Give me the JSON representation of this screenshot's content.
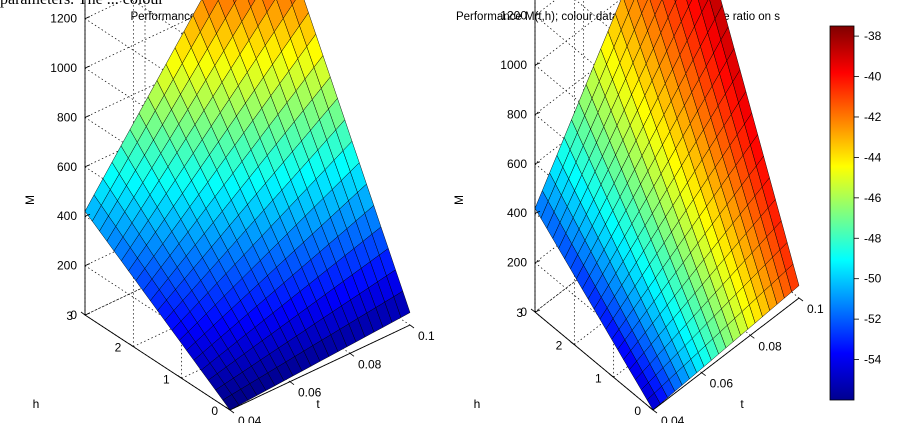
{
  "clipped_top_text": "parameters. The ... colour",
  "chart_data": [
    {
      "type": "surface",
      "title": "Performance M(t,h)",
      "xlabel": "t",
      "ylabel": "h",
      "zlabel": "M",
      "x_ticks": [
        "0.04",
        "0.06",
        "0.08",
        "0.1"
      ],
      "y_ticks": [
        "0",
        "1",
        "2",
        "3"
      ],
      "z_ticks": [
        "0",
        "200",
        "400",
        "600",
        "800",
        "1000",
        "1200"
      ],
      "xlim": [
        0.04,
        0.1
      ],
      "ylim": [
        0,
        3
      ],
      "zlim": [
        0,
        1200
      ],
      "corner_values": {
        "t0.04_h0": 0,
        "t0.04_h3": 420,
        "t0.1_h0": 50,
        "t0.1_h3": 1400
      },
      "colour_data": "M",
      "colormap": "jet",
      "grid": true
    },
    {
      "type": "surface",
      "title": "Performance M(t,h); colour data is the Signal to Noise ratio on s",
      "xlabel": "t",
      "ylabel": "h",
      "zlabel": "M",
      "x_ticks": [
        "0.04",
        "0.06",
        "0.08",
        "0.1"
      ],
      "y_ticks": [
        "0",
        "1",
        "2",
        "3"
      ],
      "z_ticks": [
        "0",
        "200",
        "400",
        "600",
        "800",
        "1000",
        "1200"
      ],
      "xlim": [
        0.04,
        0.1
      ],
      "ylim": [
        0,
        3
      ],
      "zlim": [
        0,
        1200
      ],
      "corner_values": {
        "t0.04_h0": 0,
        "t0.04_h3": 420,
        "t0.1_h0": 50,
        "t0.1_h3": 1400
      },
      "colour_data": "Signal to Noise ratio",
      "colormap": "jet",
      "colorbar": {
        "range": [
          -56,
          -37.5
        ],
        "ticks": [
          "-38",
          "-40",
          "-42",
          "-44",
          "-46",
          "-48",
          "-50",
          "-52",
          "-54"
        ],
        "tick_values": [
          -38,
          -40,
          -42,
          -44,
          -46,
          -48,
          -50,
          -52,
          -54
        ]
      },
      "grid": true
    }
  ]
}
